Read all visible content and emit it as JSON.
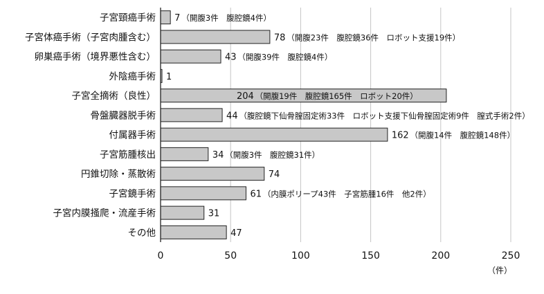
{
  "chart_data": {
    "type": "bar",
    "orientation": "horizontal",
    "categories": [
      "子宮頸癌手術",
      "子宮体癌手術（子宮肉腫含む）",
      "卵巣癌手術（境界悪性含む）",
      "外陰癌手術",
      "子宮全摘術（良性）",
      "骨盤臓器脱手術",
      "付属器手術",
      "子宮筋腫核出",
      "円錐切除・蒸散術",
      "子宮鏡手術",
      "子宮内膜掻爬・流産手術",
      "その他"
    ],
    "values": [
      7,
      78,
      43,
      1,
      204,
      44,
      162,
      34,
      74,
      61,
      31,
      47
    ],
    "annotations": [
      "（開腹3件　腹腔鏡4件）",
      "（開腹23件　腹腔鏡36件　ロボット支援19件）",
      "（開腹39件　腹腔鏡4件）",
      "",
      "（開腹19件　腹腔鏡165件　ロボット20件）",
      "（腹腔鏡下仙骨膣固定術33件　ロボット支援下仙骨膣固定術9件　膣式手術2件）",
      "（開腹14件　腹腔鏡148件）",
      "（開腹3件　腹腔鏡31件）",
      "",
      "（内膜ポリープ43件　子宮筋腫16件　他2件）",
      "",
      ""
    ],
    "xlim": [
      0,
      250
    ],
    "xticks": [
      "0",
      "50",
      "100",
      "150",
      "200",
      "250"
    ],
    "unit_label": "（件）",
    "grid": true,
    "bar_color": "#c8c8c8",
    "bar_edge_color": "#222222"
  }
}
